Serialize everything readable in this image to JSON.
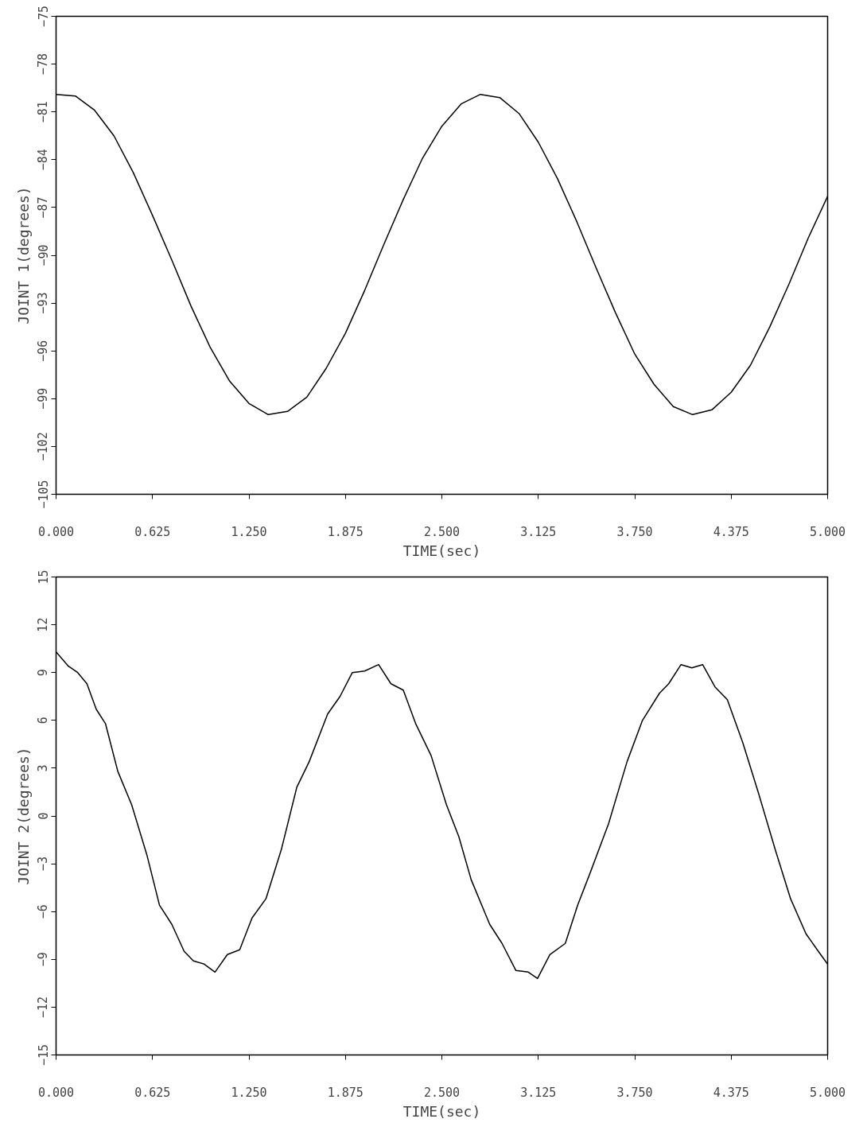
{
  "chart_data": [
    {
      "type": "line",
      "xlabel": "TIME(sec)",
      "ylabel": "JOINT 1(degrees)",
      "grid": false,
      "marker": "none",
      "line_style": "solid",
      "x": [
        0,
        0.125,
        0.25,
        0.375,
        0.5,
        0.625,
        0.75,
        0.875,
        1.0,
        1.125,
        1.25,
        1.375,
        1.5,
        1.625,
        1.75,
        1.875,
        2.0,
        2.125,
        2.25,
        2.375,
        2.5,
        2.625,
        2.75,
        2.875,
        3.0,
        3.125,
        3.25,
        3.375,
        3.5,
        3.625,
        3.75,
        3.875,
        4.0,
        4.125,
        4.25,
        4.375,
        4.5,
        4.625,
        4.75,
        4.875,
        5.0
      ],
      "series": [
        {
          "color": "#000000",
          "values": [
            -79.9,
            -80.0,
            -80.9,
            -82.5,
            -84.8,
            -87.5,
            -90.3,
            -93.2,
            -95.8,
            -97.9,
            -99.3,
            -100.0,
            -99.8,
            -98.9,
            -97.1,
            -94.9,
            -92.2,
            -89.3,
            -86.5,
            -83.9,
            -81.9,
            -80.5,
            -79.9,
            -80.1,
            -81.1,
            -82.9,
            -85.2,
            -87.9,
            -90.8,
            -93.6,
            -96.2,
            -98.1,
            -99.5,
            -100.0,
            -99.7,
            -98.6,
            -96.9,
            -94.5,
            -91.8,
            -88.9,
            -86.3
          ]
        }
      ],
      "xlim": [
        0,
        5
      ],
      "ylim": [
        -105,
        -75
      ],
      "xticks": [
        {
          "value": 0,
          "label": "0.000"
        },
        {
          "value": 0.625,
          "label": "0.625"
        },
        {
          "value": 1.25,
          "label": "1.250"
        },
        {
          "value": 1.875,
          "label": "1.875"
        },
        {
          "value": 2.5,
          "label": "2.500"
        },
        {
          "value": 3.125,
          "label": "3.125"
        },
        {
          "value": 3.75,
          "label": "3.750"
        },
        {
          "value": 4.375,
          "label": "4.375"
        },
        {
          "value": 5,
          "label": "5.000"
        }
      ],
      "yticks": [
        -105,
        -102,
        -99,
        -96,
        -93,
        -90,
        -87,
        -84,
        -81,
        -78,
        -75
      ]
    },
    {
      "type": "line",
      "xlabel": "TIME(sec)",
      "ylabel": "JOINT 2(degrees)",
      "grid": false,
      "marker": "none",
      "line_style": "solid",
      "x": [
        0,
        0.08,
        0.14,
        0.2,
        0.26,
        0.32,
        0.4,
        0.49,
        0.59,
        0.67,
        0.75,
        0.83,
        0.89,
        0.96,
        1.03,
        1.11,
        1.19,
        1.27,
        1.36,
        1.46,
        1.56,
        1.64,
        1.76,
        1.84,
        1.92,
        2.0,
        2.09,
        2.17,
        2.25,
        2.33,
        2.43,
        2.53,
        2.61,
        2.69,
        2.81,
        2.89,
        2.98,
        3.06,
        3.12,
        3.2,
        3.3,
        3.38,
        3.46,
        3.58,
        3.7,
        3.8,
        3.91,
        3.97,
        4.05,
        4.12,
        4.19,
        4.27,
        4.35,
        4.45,
        4.55,
        4.66,
        4.76,
        4.86,
        4.94,
        5.0
      ],
      "series": [
        {
          "color": "#000000",
          "values": [
            10.3,
            9.4,
            9.0,
            8.3,
            6.7,
            5.8,
            2.8,
            0.7,
            -2.5,
            -5.6,
            -6.8,
            -8.5,
            -9.1,
            -9.3,
            -9.8,
            -8.7,
            -8.4,
            -6.4,
            -5.2,
            -2.1,
            1.8,
            3.4,
            6.4,
            7.5,
            9.0,
            9.1,
            9.5,
            8.3,
            7.9,
            5.8,
            3.8,
            0.7,
            -1.3,
            -4.0,
            -6.8,
            -8.0,
            -9.7,
            -9.8,
            -10.2,
            -8.7,
            -8.0,
            -5.6,
            -3.6,
            -0.5,
            3.4,
            6.0,
            7.7,
            8.3,
            9.5,
            9.3,
            9.5,
            8.1,
            7.3,
            4.6,
            1.5,
            -2.1,
            -5.2,
            -7.4,
            -8.5,
            -9.3
          ]
        }
      ],
      "xlim": [
        0,
        5
      ],
      "ylim": [
        -15,
        15
      ],
      "xticks": [
        {
          "value": 0,
          "label": "0.000"
        },
        {
          "value": 0.625,
          "label": "0.625"
        },
        {
          "value": 1.25,
          "label": "1.250"
        },
        {
          "value": 1.875,
          "label": "1.875"
        },
        {
          "value": 2.5,
          "label": "2.500"
        },
        {
          "value": 3.125,
          "label": "3.125"
        },
        {
          "value": 3.75,
          "label": "3.750"
        },
        {
          "value": 4.375,
          "label": "4.375"
        },
        {
          "value": 5,
          "label": "5.000"
        }
      ],
      "yticks": [
        -15,
        -12,
        -9,
        -6,
        -3,
        0,
        3,
        6,
        9,
        12,
        15
      ]
    }
  ]
}
